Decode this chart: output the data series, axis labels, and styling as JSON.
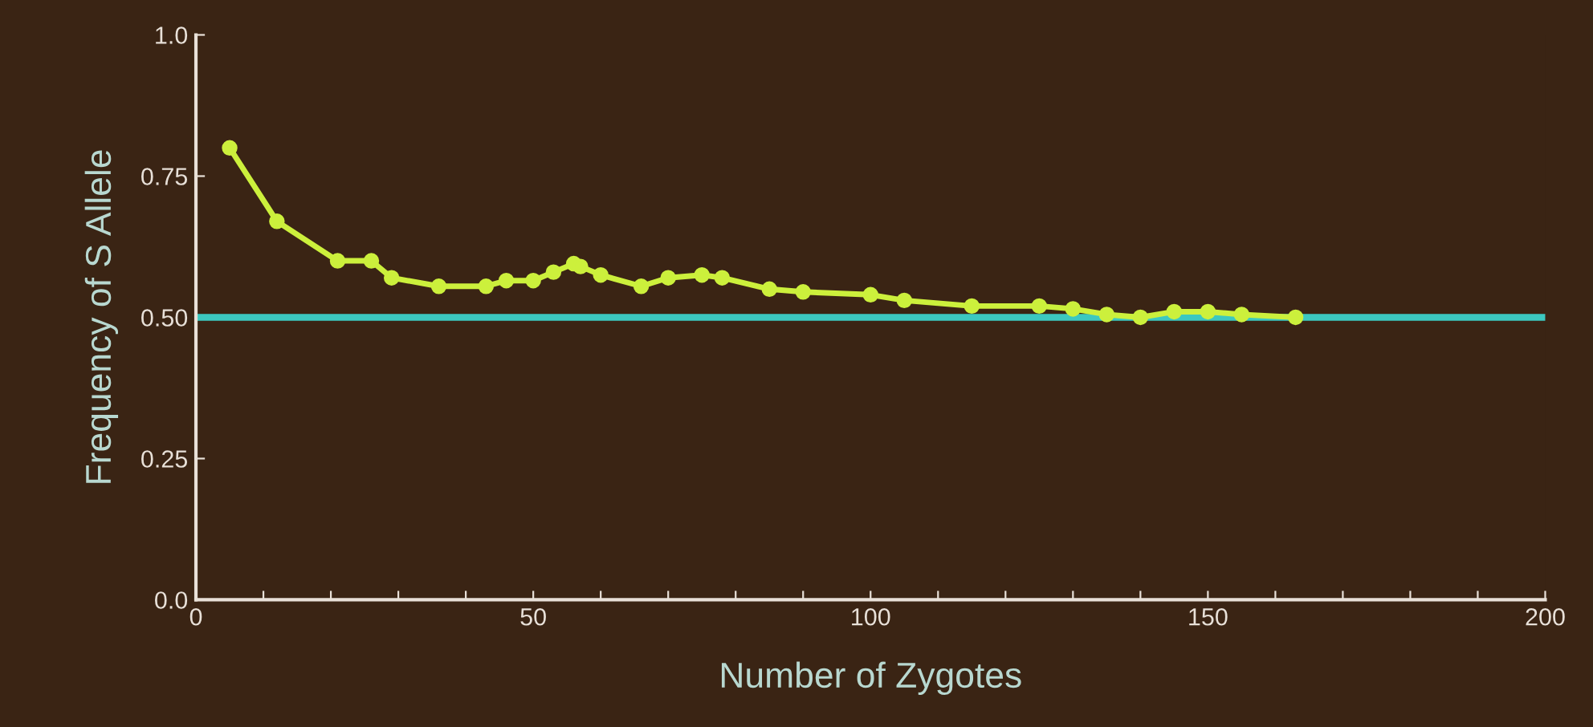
{
  "chart_data": {
    "type": "line",
    "xlabel": "Number of Zygotes",
    "ylabel": "Frequency of S Allele",
    "series": [
      {
        "color": "#ccf03c",
        "x": [
          5,
          12,
          21,
          26,
          29,
          36,
          43,
          46,
          50,
          53,
          56,
          57,
          60,
          66,
          70,
          75,
          78,
          85,
          90,
          100,
          105,
          115,
          125,
          130,
          135,
          140,
          145,
          150,
          155,
          163
        ],
        "values": [
          0.8,
          0.67,
          0.6,
          0.6,
          0.57,
          0.555,
          0.555,
          0.565,
          0.565,
          0.58,
          0.595,
          0.59,
          0.575,
          0.555,
          0.57,
          0.575,
          0.57,
          0.55,
          0.545,
          0.54,
          0.53,
          0.52,
          0.52,
          0.515,
          0.505,
          0.5,
          0.51,
          0.51,
          0.505,
          0.5
        ]
      }
    ],
    "marker": "circle",
    "line_style": "solid",
    "grid": false,
    "legend": false,
    "xlim": [
      0,
      200
    ],
    "ylim": [
      0,
      1
    ],
    "xticks": [
      0,
      {
        "value": 10,
        "label": null
      },
      {
        "value": 20,
        "label": null
      },
      {
        "value": 30,
        "label": null
      },
      {
        "value": 40,
        "label": null
      },
      50,
      {
        "value": 60,
        "label": null
      },
      {
        "value": 70,
        "label": null
      },
      {
        "value": 80,
        "label": null
      },
      {
        "value": 90,
        "label": null
      },
      100,
      {
        "value": 110,
        "label": null
      },
      {
        "value": 120,
        "label": null
      },
      {
        "value": 130,
        "label": null
      },
      {
        "value": 140,
        "label": null
      },
      150,
      {
        "value": 160,
        "label": null
      },
      {
        "value": 170,
        "label": null
      },
      {
        "value": 180,
        "label": null
      },
      {
        "value": 190,
        "label": null
      },
      200
    ],
    "yticks": [
      {
        "value": 0,
        "label": "0.0"
      },
      0.25,
      {
        "value": 0.5,
        "label": "0.50"
      },
      0.75,
      {
        "value": 1,
        "label": "1.0"
      }
    ],
    "ref_lines": [
      {
        "axis": "y",
        "value": 0.5,
        "label": null,
        "color": "#3cc8c0",
        "line_style": "solid"
      }
    ]
  }
}
